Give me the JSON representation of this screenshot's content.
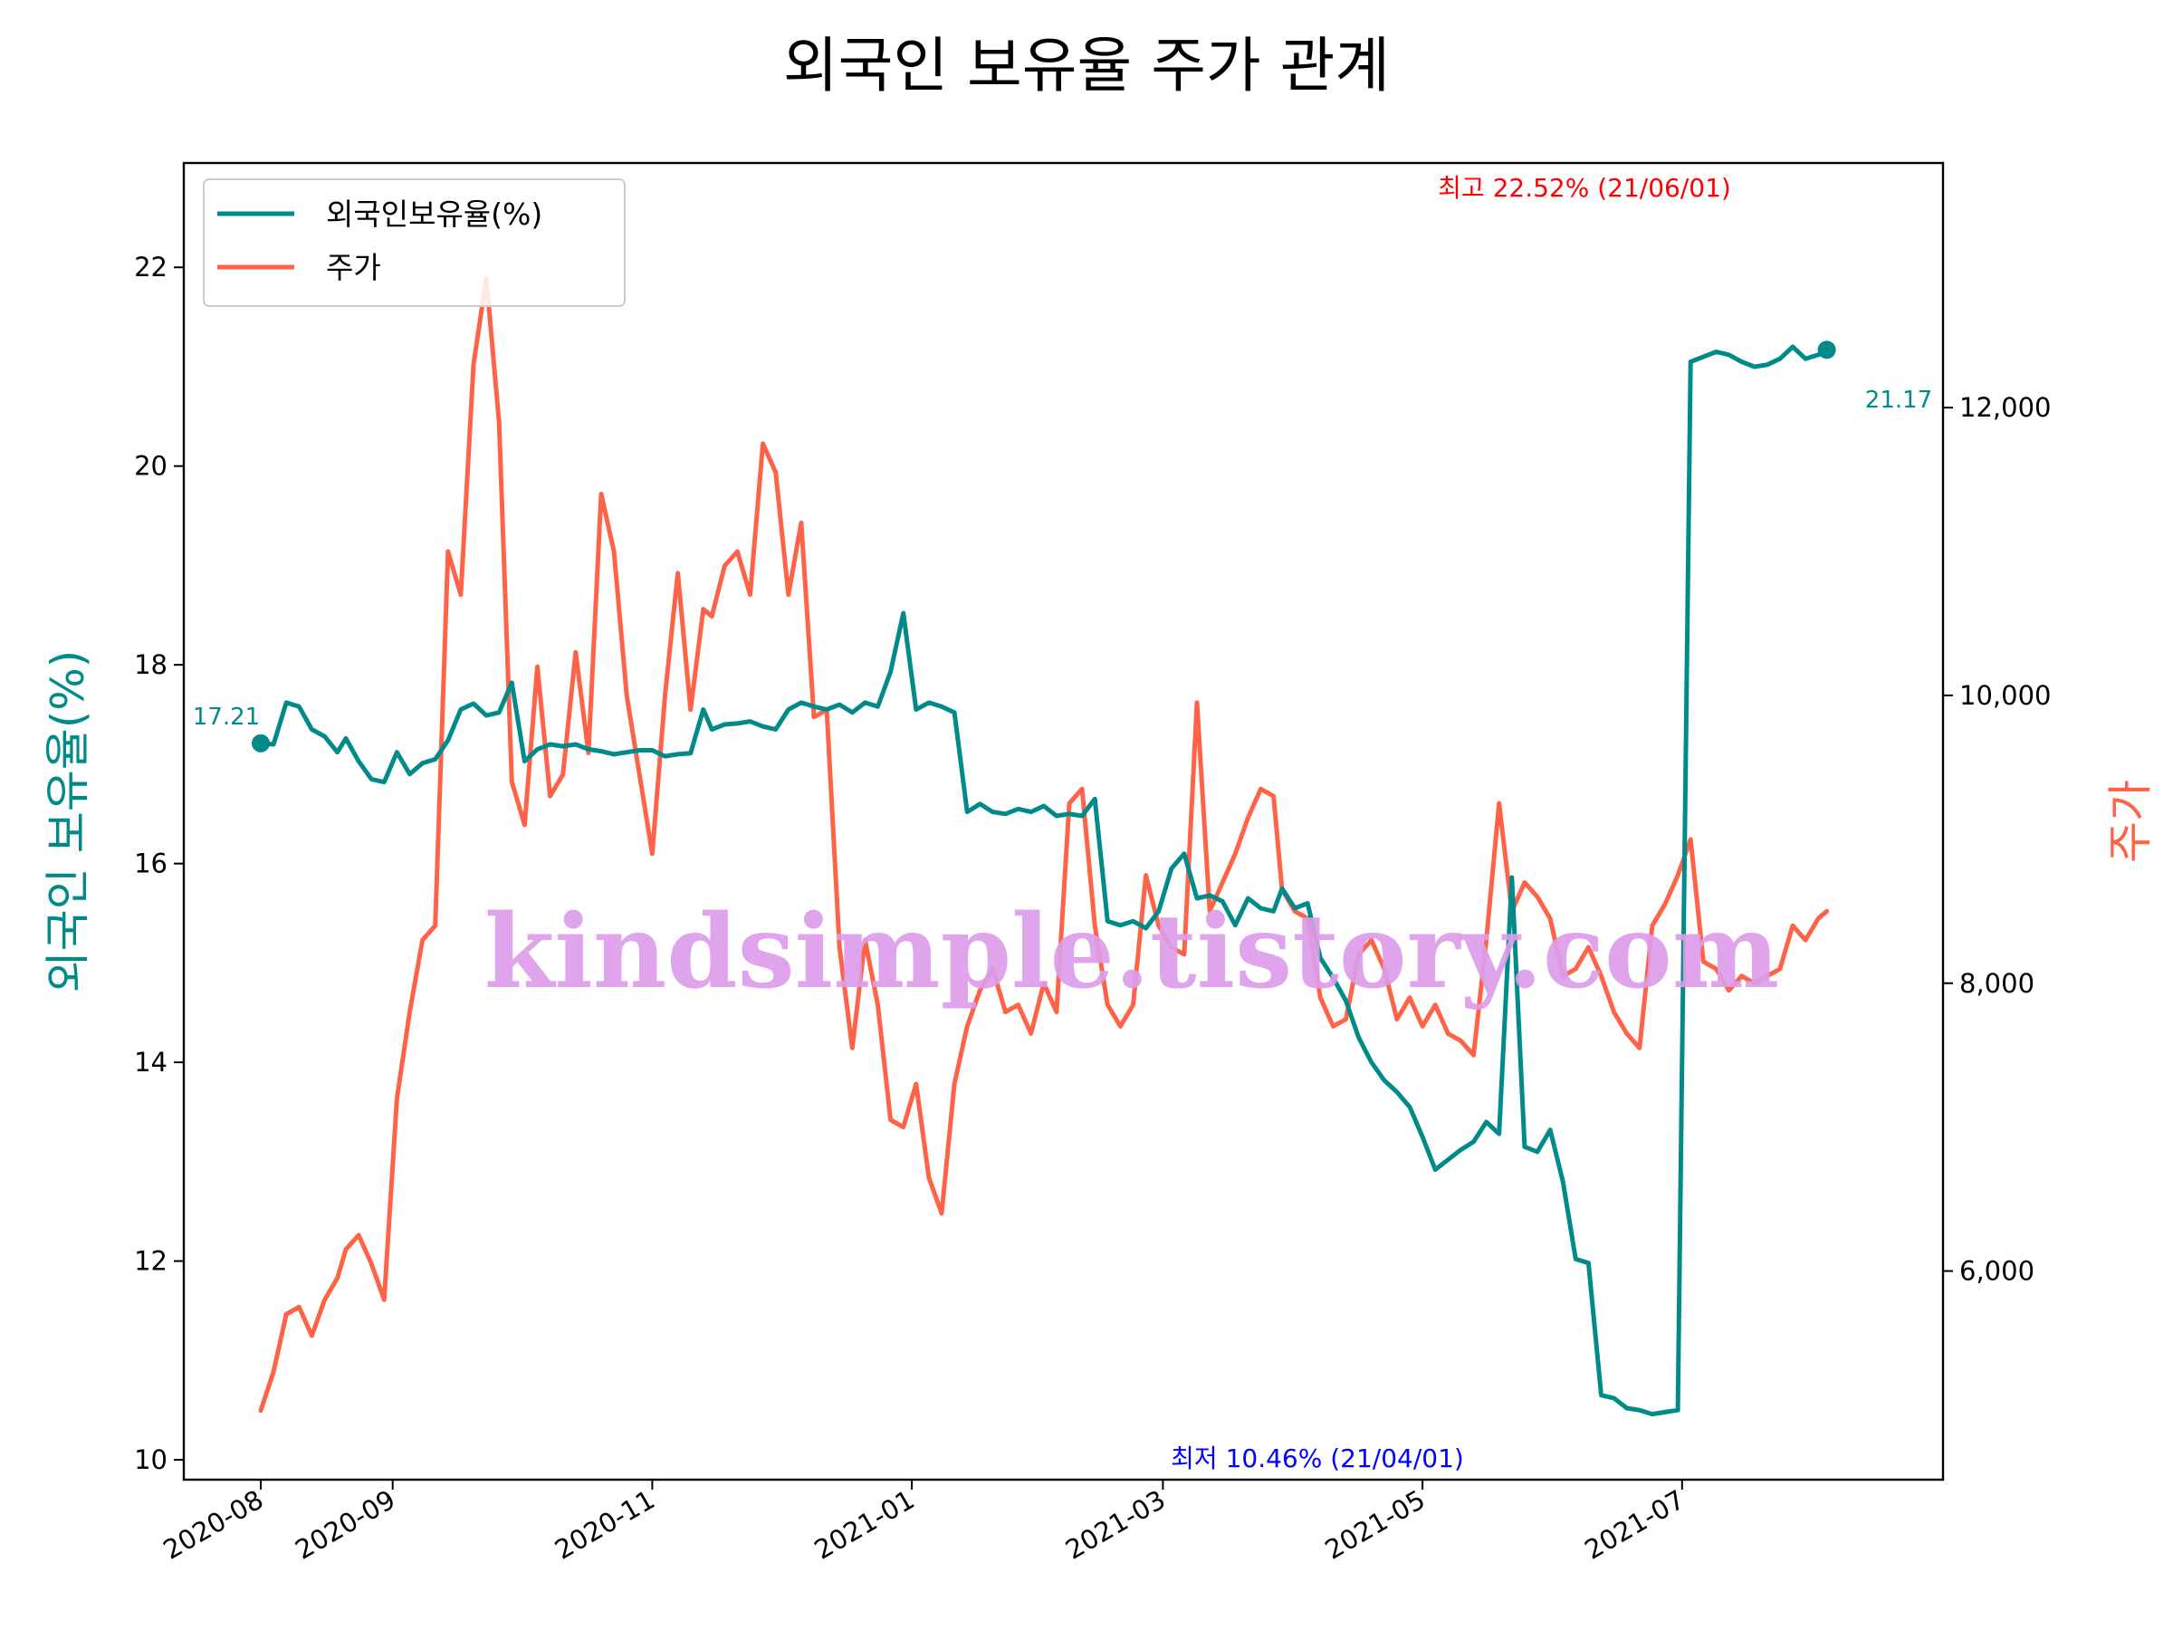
{
  "chart_data": {
    "type": "line",
    "title": "외국인 보유율 주가 관계",
    "ylabel_left": "외국인 보유율(%)",
    "ylabel_right": "주가",
    "legend": {
      "position": "upper-left",
      "entries": [
        "외국인보유율(%)",
        "주가"
      ]
    },
    "x_tick_labels": [
      "2020-08",
      "2020-09",
      "2020-11",
      "2021-01",
      "2021-03",
      "2021-05",
      "2021-07"
    ],
    "y_left_ticks": [
      "10",
      "12",
      "14",
      "16",
      "18",
      "20",
      "22"
    ],
    "y_right_ticks": [
      "6,000",
      "8,000",
      "10,000",
      "12,000"
    ],
    "ylim_left": [
      9.8,
      23.05
    ],
    "ylim_right": [
      4550,
      13700
    ],
    "colors": {
      "foreign_ratio": "#008b8a",
      "price": "#ff6347",
      "max_annot": "#ff0000",
      "min_annot": "#0000ff",
      "watermark": "#dc9ce9"
    },
    "annotations": {
      "max": {
        "label": "최고 22.52% (21/06/01)",
        "value": 22.52
      },
      "min": {
        "label": "최저 10.46% (21/04/01)",
        "value": 10.46
      },
      "start_value": "17.21",
      "end_value": "21.17"
    },
    "watermark": "kindsimple.tistory.com",
    "series": [
      {
        "name": "외국인보유율(%)",
        "axis": "left",
        "x": [
          0,
          3,
          6,
          9,
          12,
          15,
          18,
          20,
          23,
          26,
          29,
          32,
          35,
          38,
          41,
          44,
          47,
          50,
          53,
          56,
          59,
          62,
          65,
          68,
          71,
          74,
          77,
          80,
          83,
          86,
          89,
          92,
          95,
          98,
          101,
          104,
          106,
          109,
          112,
          115,
          118,
          121,
          124,
          127,
          130,
          133,
          136,
          139,
          142,
          145,
          148,
          151,
          154,
          157,
          160,
          163,
          166,
          169,
          172,
          175,
          178,
          181,
          184,
          187,
          190,
          193,
          196,
          199,
          202,
          205,
          208,
          211,
          214,
          217,
          220,
          223,
          226,
          229,
          232,
          235,
          238,
          240,
          243,
          246,
          249,
          252,
          255,
          258,
          261,
          264,
          267,
          270,
          273,
          276,
          279,
          282,
          285,
          288,
          291,
          294,
          297,
          300,
          303,
          306,
          309,
          312,
          315,
          318,
          321,
          324,
          327,
          330,
          333,
          336,
          339,
          342,
          345,
          348,
          351,
          354,
          357,
          360,
          363,
          366,
          368
        ],
        "values": [
          17.21,
          17.2,
          17.62,
          17.58,
          17.35,
          17.28,
          17.12,
          17.26,
          17.03,
          16.85,
          16.82,
          17.12,
          16.9,
          17.01,
          17.05,
          17.24,
          17.55,
          17.61,
          17.49,
          17.52,
          17.82,
          17.03,
          17.15,
          17.2,
          17.18,
          17.2,
          17.15,
          17.13,
          17.1,
          17.12,
          17.14,
          17.14,
          17.08,
          17.1,
          17.11,
          17.55,
          17.35,
          17.4,
          17.41,
          17.43,
          17.38,
          17.35,
          17.55,
          17.62,
          17.58,
          17.55,
          17.6,
          17.52,
          17.62,
          17.58,
          17.93,
          18.52,
          17.55,
          17.62,
          17.58,
          17.52,
          16.52,
          16.6,
          16.52,
          16.5,
          16.55,
          16.52,
          16.58,
          16.48,
          16.5,
          16.48,
          16.65,
          15.42,
          15.38,
          15.42,
          15.35,
          15.52,
          15.95,
          16.1,
          15.65,
          15.68,
          15.62,
          15.38,
          15.65,
          15.55,
          15.52,
          15.75,
          15.55,
          15.6,
          15.05,
          14.85,
          14.62,
          14.25,
          14.0,
          13.82,
          13.7,
          13.55,
          13.25,
          12.92,
          13.02,
          13.12,
          13.2,
          13.4,
          13.28,
          15.86,
          13.15,
          13.1,
          13.32,
          12.8,
          12.02,
          11.98,
          10.65,
          10.62,
          10.52,
          10.5,
          10.46,
          10.48,
          10.5,
          21.05,
          21.1,
          21.15,
          21.12,
          21.05,
          21.0,
          21.02,
          21.08,
          21.2,
          21.08,
          21.12,
          21.17
        ]
      },
      {
        "name": "주가",
        "axis": "right",
        "x": [
          0,
          3,
          6,
          9,
          12,
          15,
          18,
          20,
          23,
          26,
          29,
          32,
          35,
          38,
          41,
          44,
          47,
          50,
          53,
          56,
          59,
          62,
          65,
          68,
          71,
          74,
          77,
          80,
          83,
          86,
          89,
          92,
          95,
          98,
          101,
          104,
          106,
          109,
          112,
          115,
          118,
          121,
          124,
          127,
          130,
          133,
          136,
          139,
          142,
          145,
          148,
          151,
          154,
          157,
          160,
          163,
          166,
          169,
          172,
          175,
          178,
          181,
          184,
          187,
          190,
          193,
          196,
          199,
          202,
          205,
          208,
          211,
          214,
          217,
          220,
          223,
          226,
          229,
          232,
          235,
          238,
          240,
          243,
          246,
          249,
          252,
          255,
          258,
          261,
          264,
          267,
          270,
          273,
          276,
          279,
          282,
          285,
          288,
          291,
          294,
          297,
          300,
          303,
          306,
          309,
          312,
          315,
          318,
          321,
          324,
          327,
          330,
          333,
          336,
          339,
          342,
          345,
          348,
          351,
          354,
          357,
          360,
          363,
          366,
          368
        ],
        "values": [
          5030,
          5300,
          5700,
          5750,
          5550,
          5800,
          5950,
          6150,
          6250,
          6050,
          5800,
          7200,
          7800,
          8300,
          8400,
          11000,
          10700,
          12300,
          12900,
          11900,
          9400,
          9100,
          10200,
          9300,
          9450,
          10300,
          9600,
          11400,
          11000,
          10000,
          9450,
          8900,
          10000,
          10850,
          9900,
          10600,
          10550,
          10900,
          11000,
          10700,
          11750,
          11550,
          10700,
          11200,
          9850,
          9900,
          8250,
          7550,
          8300,
          7850,
          7050,
          7000,
          7300,
          6650,
          6400,
          7300,
          7700,
          7950,
          8100,
          7800,
          7850,
          7650,
          8000,
          7800,
          9250,
          9350,
          8400,
          7850,
          7700,
          7850,
          8750,
          8400,
          8250,
          8200,
          9950,
          8500,
          8700,
          8900,
          9150,
          9350,
          9300,
          8650,
          8500,
          8450,
          7900,
          7700,
          7750,
          8200,
          8300,
          8100,
          7750,
          7900,
          7700,
          7850,
          7650,
          7600,
          7500,
          8300,
          9250,
          8500,
          8700,
          8600,
          8450,
          8050,
          8100,
          8250,
          8050,
          7800,
          7650,
          7550,
          8400,
          8550,
          8750,
          9000,
          8150,
          8100,
          7950,
          8050,
          8000,
          8050,
          8100,
          8400,
          8300,
          8450,
          8500
        ]
      }
    ]
  }
}
